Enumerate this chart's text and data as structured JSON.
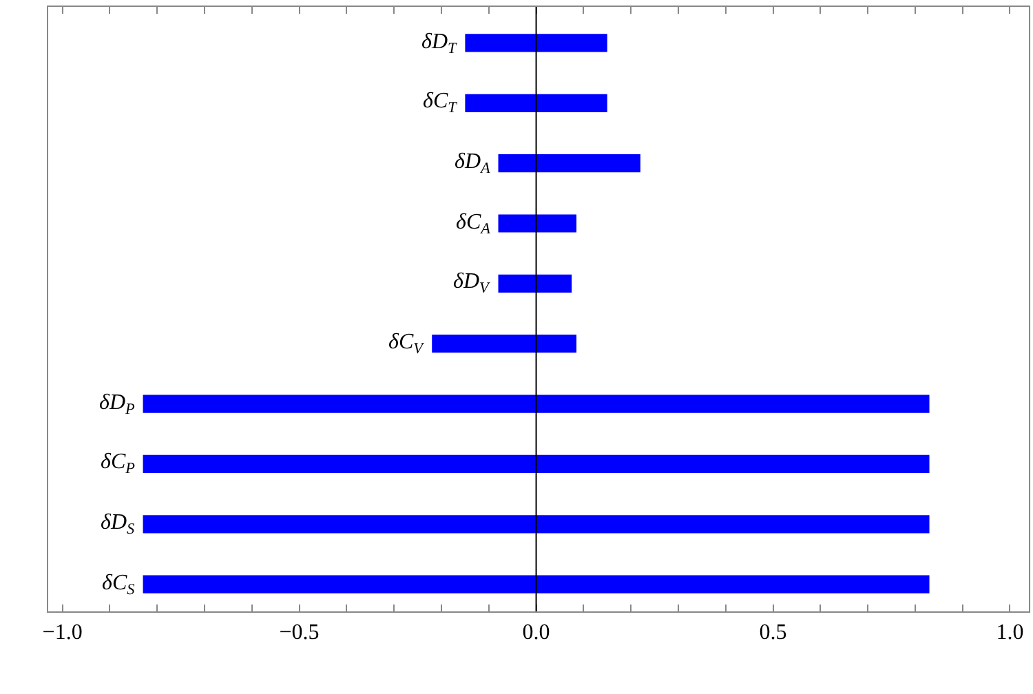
{
  "chart_data": {
    "type": "bar",
    "orientation": "horizontal",
    "categories": [
      "δD$_{T}$",
      "δC$_{T}$",
      "δD$_{A}$",
      "δC$_{A}$",
      "δD$_{V}$",
      "δC$_{V}$",
      "δD$_{P}$",
      "δC$_{P}$",
      "δD$_{S}$",
      "δC$_{S}$"
    ],
    "base": [
      -0.15,
      -0.15,
      -0.08,
      -0.08,
      -0.08,
      -0.22,
      -0.83,
      -0.83,
      -0.83,
      -0.83
    ],
    "values": [
      0.3,
      0.3,
      0.3,
      0.165,
      0.155,
      0.305,
      1.66,
      1.66,
      1.66,
      1.66
    ],
    "color": "#0000ff",
    "xlim": [
      -1.03,
      1.04
    ],
    "xticks": [
      {
        "value": -1.0,
        "label": "−1.0"
      },
      {
        "value": -0.9,
        "label": null
      },
      {
        "value": -0.8,
        "label": null
      },
      {
        "value": -0.7,
        "label": null
      },
      {
        "value": -0.6,
        "label": null
      },
      {
        "value": -0.5,
        "label": "−0.5"
      },
      {
        "value": -0.4,
        "label": null
      },
      {
        "value": -0.3,
        "label": null
      },
      {
        "value": -0.2,
        "label": null
      },
      {
        "value": -0.1,
        "label": null
      },
      {
        "value": 0.0,
        "label": "0.0"
      },
      {
        "value": 0.1,
        "label": null
      },
      {
        "value": 0.2,
        "label": null
      },
      {
        "value": 0.3,
        "label": null
      },
      {
        "value": 0.4,
        "label": null
      },
      {
        "value": 0.5,
        "label": "0.5"
      },
      {
        "value": 0.6,
        "label": null
      },
      {
        "value": 0.7,
        "label": null
      },
      {
        "value": 0.8,
        "label": null
      },
      {
        "value": 0.9,
        "label": null
      },
      {
        "value": 1.0,
        "label": "1.0"
      }
    ],
    "ref_lines": [
      {
        "axis": "x",
        "value": 0,
        "color": "#000000",
        "line_style": "solid"
      }
    ],
    "legend": false
  }
}
